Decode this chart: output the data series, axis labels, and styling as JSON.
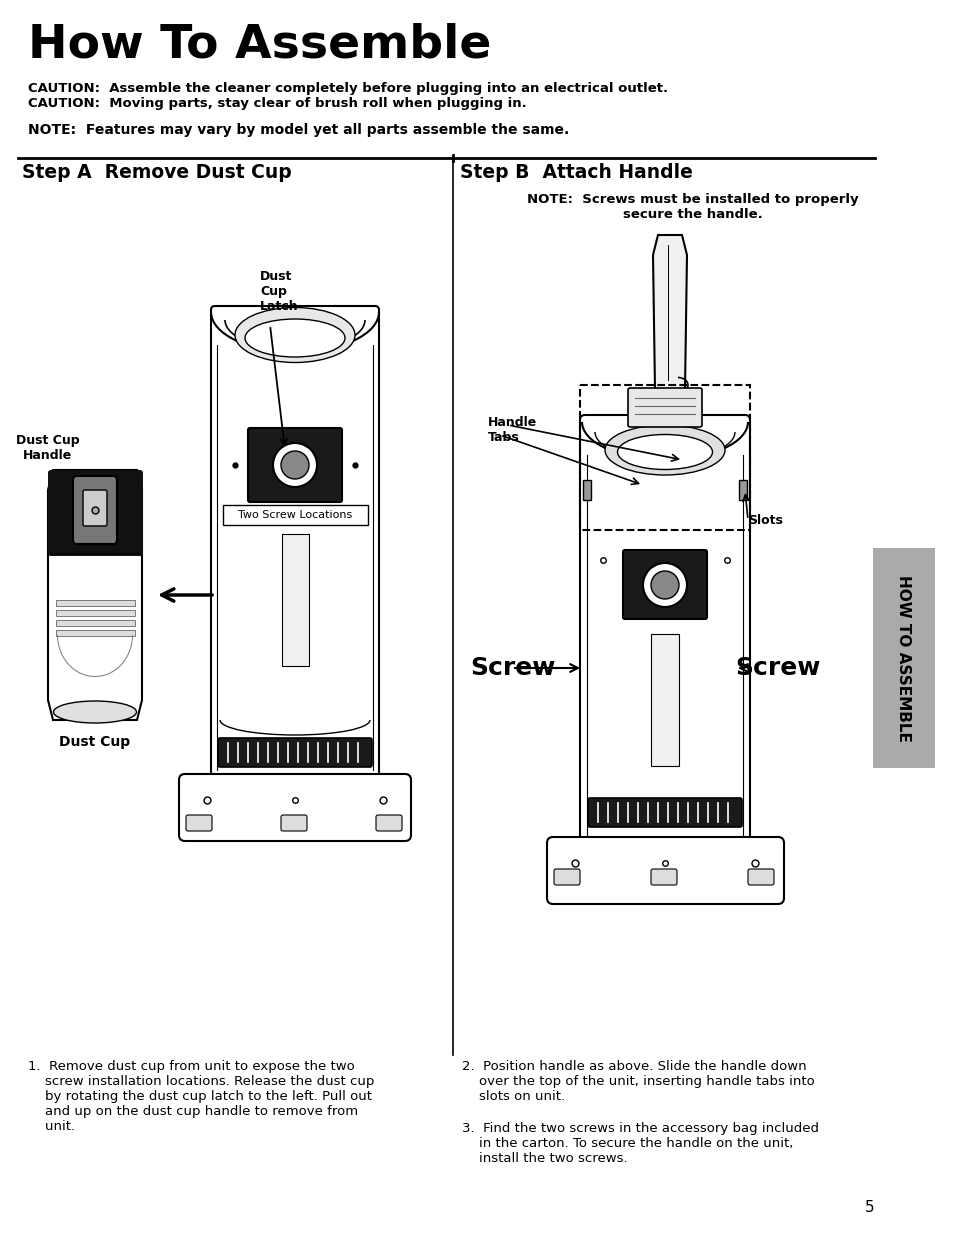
{
  "title": "How To Assemble",
  "caution1": "CAUTION:  Assemble the cleaner completely before plugging into an electrical outlet.",
  "caution2": "CAUTION:  Moving parts, stay clear of brush roll when plugging in.",
  "note_top": "NOTE:  Features may vary by model yet all parts assemble the same.",
  "step_a_title": "Step A  Remove Dust Cup",
  "step_b_title": "Step B  Attach Handle",
  "step_b_note": "NOTE:  Screws must be installed to properly\nsecure the handle.",
  "label_dust_cup_latch": "Dust\nCup\nLatch",
  "label_dust_cup_handle": "Dust Cup\nHandle",
  "label_dust_cup": "Dust Cup",
  "label_two_screw": "Two Screw Locations",
  "label_handle_tabs": "Handle\nTabs",
  "label_slots": "Slots",
  "label_screw_left": "Screw",
  "label_screw_right": "Screw",
  "step1_text": "1.  Remove dust cup from unit to expose the two\n    screw installation locations. Release the dust cup\n    by rotating the dust cup latch to the left. Pull out\n    and up on the dust cup handle to remove from\n    unit.",
  "step2_text": "2.  Position handle as above. Slide the handle down\n    over the top of the unit, inserting handle tabs into\n    slots on unit.",
  "step3_text": "3.  Find the two screws in the accessory bag included\n    in the carton. To secure the handle on the unit,\n    install the two screws.",
  "page_number": "5",
  "sidebar_text": "HOW TO ASSEMBLE",
  "bg_color": "#ffffff",
  "text_color": "#000000",
  "sidebar_bg": "#aaaaaa"
}
